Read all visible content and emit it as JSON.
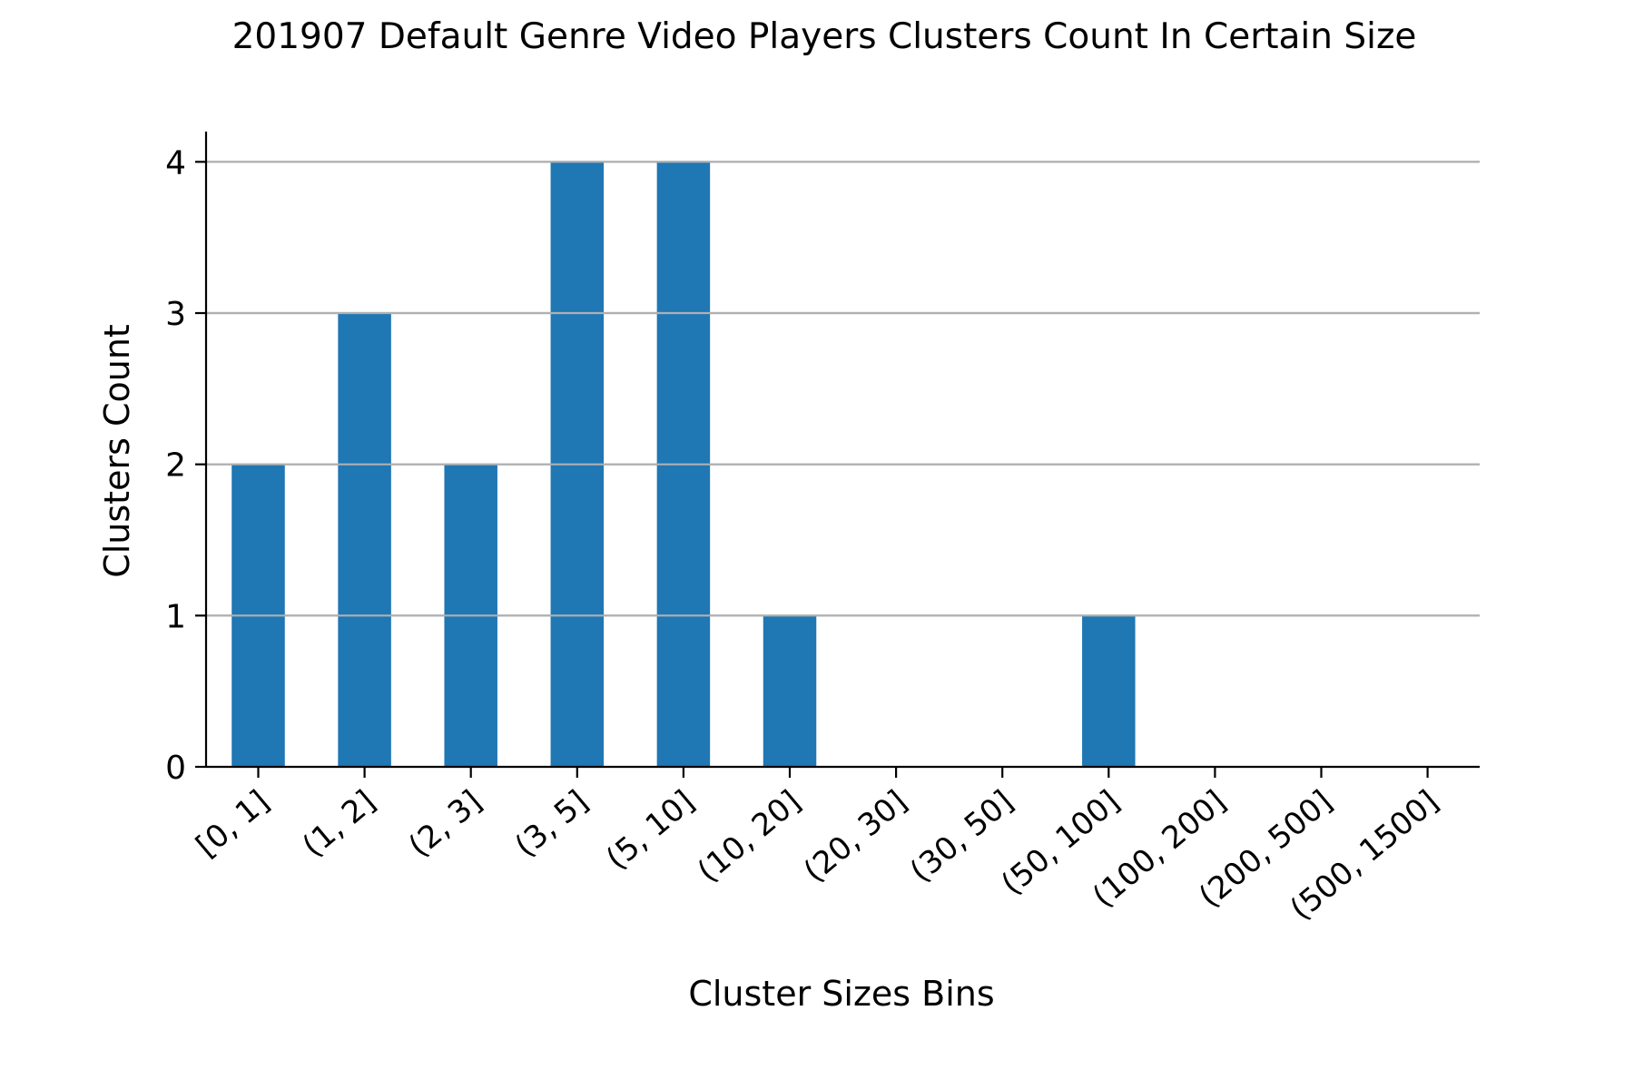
{
  "chart_data": {
    "type": "bar",
    "title": "201907 Default Genre Video Players Clusters Count In Certain Size",
    "xlabel": "Cluster Sizes Bins",
    "ylabel": "Clusters Count",
    "categories": [
      "[0, 1]",
      "(1, 2]",
      "(2, 3]",
      "(3, 5]",
      "(5, 10]",
      "(10, 20]",
      "(20, 30]",
      "(30, 50]",
      "(50, 100]",
      "(100, 200]",
      "(200, 500]",
      "(500, 1500]"
    ],
    "values": [
      2,
      3,
      2,
      4,
      4,
      1,
      0,
      0,
      1,
      0,
      0,
      0
    ],
    "ylim": [
      0,
      4.2
    ],
    "yticks": [
      0,
      1,
      2,
      3,
      4
    ],
    "grid": "y",
    "legend": "none",
    "colors": {
      "bar": "#1f77b4",
      "grid": "#b0b0b0",
      "axis": "#000000"
    }
  }
}
